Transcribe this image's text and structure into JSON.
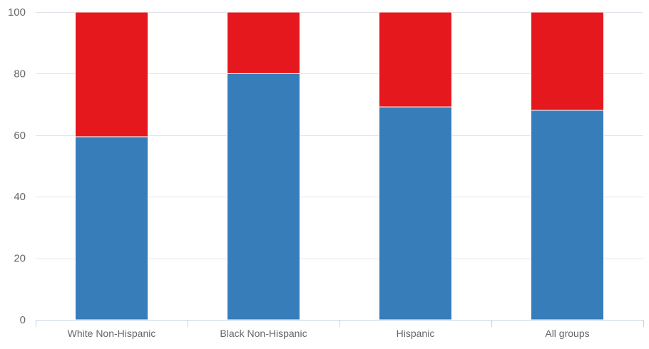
{
  "chart_data": {
    "type": "bar",
    "stacked": true,
    "categories": [
      "White Non-Hispanic",
      "Black Non-Hispanic",
      "Hispanic",
      "All groups"
    ],
    "series": [
      {
        "values": [
          59.5,
          80,
          69.2,
          68.1
        ],
        "color": "#377dba"
      },
      {
        "values": [
          40.5,
          20,
          30.8,
          31.9
        ],
        "color": "#e5191d"
      }
    ],
    "ylim": [
      0,
      100
    ],
    "yticks": [
      0,
      20,
      40,
      60,
      80,
      100
    ],
    "grid": true,
    "legend": "none",
    "title": "",
    "xlabel": "",
    "ylabel": ""
  }
}
